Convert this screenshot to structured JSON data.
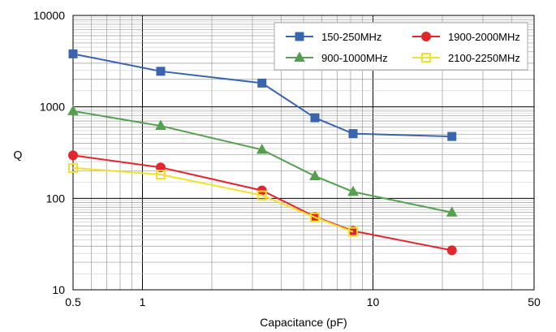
{
  "chart_data": {
    "type": "line",
    "title": "",
    "xlabel": "Capacitance (pF)",
    "ylabel": "Q",
    "x_scale": "log",
    "y_scale": "log",
    "xlim": [
      0.5,
      50
    ],
    "ylim": [
      10,
      10000
    ],
    "x_ticks": [
      {
        "value": 0.5,
        "label": "0.5"
      },
      {
        "value": 1,
        "label": "1"
      },
      {
        "value": 10,
        "label": "10"
      },
      {
        "value": 50,
        "label": "50"
      }
    ],
    "y_ticks": [
      {
        "value": 10,
        "label": "10"
      },
      {
        "value": 100,
        "label": "100"
      },
      {
        "value": 1000,
        "label": "1000"
      },
      {
        "value": 10000,
        "label": "10000"
      }
    ],
    "grid": true,
    "legend_position": "top-right",
    "series": [
      {
        "name": "150-250MHz",
        "color": "#3a64ad",
        "marker": "square-filled",
        "x": [
          0.5,
          1.2,
          3.3,
          5.6,
          8.2,
          22
        ],
        "y": [
          3800,
          2450,
          1820,
          760,
          510,
          475
        ]
      },
      {
        "name": "900-1000MHz",
        "color": "#55a04f",
        "marker": "triangle-filled",
        "x": [
          0.5,
          1.2,
          3.3,
          5.6,
          8.2,
          22
        ],
        "y": [
          900,
          620,
          340,
          175,
          118,
          70
        ]
      },
      {
        "name": "1900-2000MHz",
        "color": "#e3262d",
        "marker": "circle-filled",
        "x": [
          0.5,
          1.2,
          3.3,
          5.6,
          8.2,
          22
        ],
        "y": [
          295,
          218,
          122,
          63,
          44,
          27
        ]
      },
      {
        "name": "2100-2250MHz",
        "color": "#f2e12a",
        "marker": "square-open",
        "x": [
          0.5,
          1.2,
          3.3,
          5.6,
          8.2
        ],
        "y": [
          215,
          182,
          108,
          62,
          43
        ]
      }
    ]
  }
}
